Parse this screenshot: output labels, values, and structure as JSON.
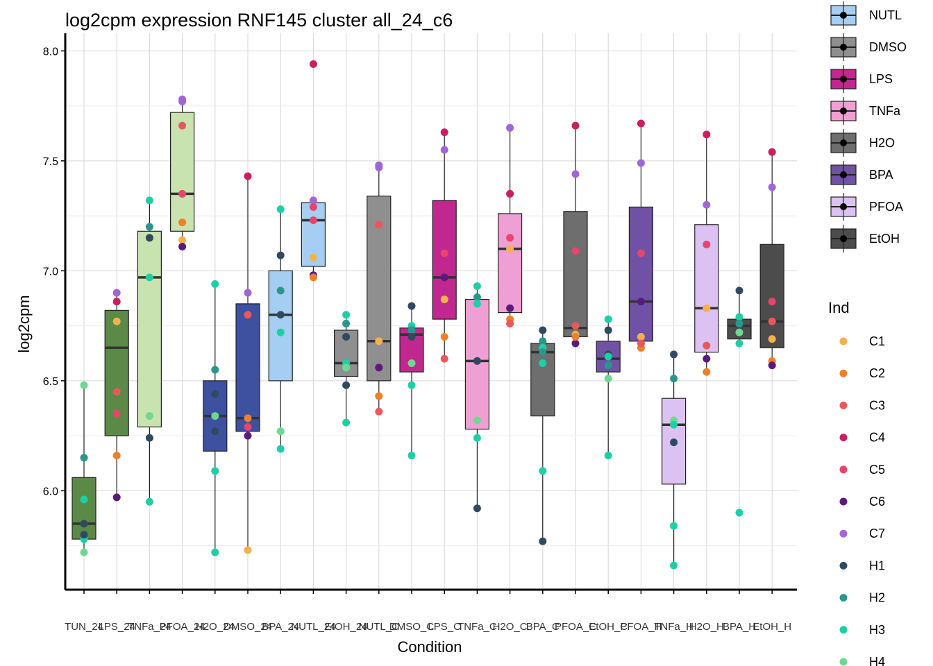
{
  "chart_data": {
    "type": "box",
    "title": "log2cpm expression RNF145 cluster all_24_c6",
    "xlabel": "Condition",
    "ylabel": "log2cpm",
    "ylim": [
      5.55,
      8.08
    ],
    "yticks": [
      "6.0",
      "6.5",
      "7.0",
      "7.5",
      "8.0"
    ],
    "ytick_values": [
      6.0,
      6.5,
      7.0,
      7.5,
      8.0
    ],
    "grid": true,
    "legend_position": "right",
    "categories": [
      "TUN_24",
      "LPS_24",
      "TNFa_24",
      "PFOA_24",
      "H2O_24",
      "DMSO_24",
      "BPA_24",
      "NUTL_24",
      "EtOH_24",
      "NUTL_C",
      "DMSO_C",
      "LPS_C",
      "TNFa_C",
      "H2O_C",
      "BPA_C",
      "PFOA_C",
      "EtOH_C",
      "PFOA_H",
      "TNFa_H",
      "H2O_H",
      "BPA_H",
      "EtOH_H"
    ],
    "treatment_legend_title": "",
    "treatments": [
      {
        "name": "NUTL",
        "color": "#a6cef2"
      },
      {
        "name": "DMSO",
        "color": "#8f8f8f"
      },
      {
        "name": "LPS",
        "color": "#c0288f"
      },
      {
        "name": "TNFa",
        "color": "#f09fd4"
      },
      {
        "name": "H2O",
        "color": "#6e6e6e"
      },
      {
        "name": "BPA",
        "color": "#6f52a5"
      },
      {
        "name": "PFOA",
        "color": "#dcc2f2"
      },
      {
        "name": "EtOH",
        "color": "#4c4c4c"
      }
    ],
    "individuals_legend_title": "Ind",
    "individuals": [
      {
        "name": "C1",
        "color": "#f5b04e"
      },
      {
        "name": "C2",
        "color": "#f07f2a"
      },
      {
        "name": "C3",
        "color": "#e8585c"
      },
      {
        "name": "C4",
        "color": "#cc1f5f"
      },
      {
        "name": "C5",
        "color": "#e8446e"
      },
      {
        "name": "C6",
        "color": "#5c1a7a"
      },
      {
        "name": "C7",
        "color": "#a066d8"
      },
      {
        "name": "H1",
        "color": "#2f4a60"
      },
      {
        "name": "H2",
        "color": "#2a968c"
      },
      {
        "name": "H3",
        "color": "#1ecfa6"
      },
      {
        "name": "H4",
        "color": "#6fd890"
      }
    ],
    "boxes": [
      {
        "fill": "#5b8a47",
        "q1": 5.78,
        "median": 5.85,
        "q3": 6.06,
        "wmin": 5.72,
        "wmax": 6.48
      },
      {
        "fill": "#5b8a47",
        "q1": 6.25,
        "median": 6.65,
        "q3": 6.82,
        "wmin": 5.97,
        "wmax": 6.9
      },
      {
        "fill": "#c8e3b0",
        "q1": 6.29,
        "median": 6.97,
        "q3": 7.18,
        "wmin": 5.95,
        "wmax": 7.32
      },
      {
        "fill": "#c8e3b0",
        "q1": 7.18,
        "median": 7.35,
        "q3": 7.72,
        "wmin": 7.11,
        "wmax": 7.78
      },
      {
        "fill": "#3e50a0",
        "q1": 6.18,
        "median": 6.34,
        "q3": 6.5,
        "wmin": 5.72,
        "wmax": 6.94
      },
      {
        "fill": "#3e50a0",
        "q1": 6.27,
        "median": 6.33,
        "q3": 6.85,
        "wmin": 5.73,
        "wmax": 7.43
      },
      {
        "fill": "#a6cef2",
        "q1": 6.5,
        "median": 6.8,
        "q3": 7.0,
        "wmin": 6.19,
        "wmax": 7.28
      },
      {
        "fill": "#a6cef2",
        "q1": 7.02,
        "median": 7.23,
        "q3": 7.31,
        "wmin": 6.96,
        "wmax": 7.32
      },
      {
        "fill": "#8f8f8f",
        "q1": 6.52,
        "median": 6.58,
        "q3": 6.73,
        "wmin": 6.31,
        "wmax": 6.8
      },
      {
        "fill": "#8f8f8f",
        "q1": 6.5,
        "median": 6.68,
        "q3": 7.34,
        "wmin": 6.36,
        "wmax": 7.48
      },
      {
        "fill": "#c0288f",
        "q1": 6.54,
        "median": 6.71,
        "q3": 6.74,
        "wmin": 6.16,
        "wmax": 6.84
      },
      {
        "fill": "#c0288f",
        "q1": 6.78,
        "median": 6.97,
        "q3": 7.32,
        "wmin": 6.6,
        "wmax": 7.63
      },
      {
        "fill": "#f09fd4",
        "q1": 6.28,
        "median": 6.59,
        "q3": 6.87,
        "wmin": 5.92,
        "wmax": 6.93
      },
      {
        "fill": "#f09fd4",
        "q1": 6.81,
        "median": 7.1,
        "q3": 7.26,
        "wmin": 6.76,
        "wmax": 7.65
      },
      {
        "fill": "#6e6e6e",
        "q1": 6.34,
        "median": 6.63,
        "q3": 6.67,
        "wmin": 5.77,
        "wmax": 6.73
      },
      {
        "fill": "#6e6e6e",
        "q1": 6.7,
        "median": 6.74,
        "q3": 7.27,
        "wmin": 6.67,
        "wmax": 7.66
      },
      {
        "fill": "#6f52a5",
        "q1": 6.54,
        "median": 6.6,
        "q3": 6.68,
        "wmin": 6.16,
        "wmax": 6.78
      },
      {
        "fill": "#6f52a5",
        "q1": 6.68,
        "median": 6.86,
        "q3": 7.29,
        "wmin": 6.65,
        "wmax": 7.67
      },
      {
        "fill": "#dcc2f2",
        "q1": 6.03,
        "median": 6.3,
        "q3": 6.42,
        "wmin": 5.66,
        "wmax": 6.62
      },
      {
        "fill": "#dcc2f2",
        "q1": 6.63,
        "median": 6.83,
        "q3": 7.21,
        "wmin": 6.54,
        "wmax": 7.62
      },
      {
        "fill": "#4c4c4c",
        "q1": 6.69,
        "median": 6.75,
        "q3": 6.78,
        "wmin": 6.67,
        "wmax": 6.91
      },
      {
        "fill": "#4c4c4c",
        "q1": 6.65,
        "median": 6.77,
        "q3": 7.12,
        "wmin": 6.57,
        "wmax": 7.54
      }
    ],
    "points": [
      [
        [
          "H4",
          6.48
        ],
        [
          "H2",
          6.15
        ],
        [
          "H3",
          5.96
        ],
        [
          "H1",
          5.85
        ],
        [
          "H3",
          5.78
        ],
        [
          "H4",
          5.72
        ],
        [
          "H1",
          5.8
        ]
      ],
      [
        [
          "C7",
          6.9
        ],
        [
          "C4",
          6.86
        ],
        [
          "C1",
          6.77
        ],
        [
          "C3",
          6.45
        ],
        [
          "C5",
          6.35
        ],
        [
          "C2",
          6.16
        ],
        [
          "C6",
          5.97
        ]
      ],
      [
        [
          "H3",
          7.32
        ],
        [
          "H2",
          7.2
        ],
        [
          "H1",
          7.15
        ],
        [
          "H3",
          6.97
        ],
        [
          "H4",
          6.34
        ],
        [
          "H1",
          6.24
        ],
        [
          "H3",
          5.95
        ]
      ],
      [
        [
          "C7",
          7.78
        ],
        [
          "C7",
          7.77
        ],
        [
          "C3",
          7.66
        ],
        [
          "C5",
          7.35
        ],
        [
          "C2",
          7.22
        ],
        [
          "C1",
          7.14
        ],
        [
          "C6",
          7.11
        ]
      ],
      [
        [
          "H3",
          6.94
        ],
        [
          "H2",
          6.55
        ],
        [
          "H1",
          6.44
        ],
        [
          "H4",
          6.34
        ],
        [
          "H1",
          6.27
        ],
        [
          "H3",
          6.09
        ],
        [
          "H3",
          5.72
        ]
      ],
      [
        [
          "C4",
          7.43
        ],
        [
          "C7",
          6.9
        ],
        [
          "C3",
          6.8
        ],
        [
          "C2",
          6.33
        ],
        [
          "C5",
          6.29
        ],
        [
          "C6",
          6.25
        ],
        [
          "C1",
          5.73
        ]
      ],
      [
        [
          "H3",
          7.28
        ],
        [
          "H1",
          7.07
        ],
        [
          "H2",
          6.91
        ],
        [
          "H1",
          6.8
        ],
        [
          "H3",
          6.72
        ],
        [
          "H4",
          6.27
        ],
        [
          "H3",
          6.19
        ]
      ],
      [
        [
          "C4",
          7.94
        ],
        [
          "C7",
          7.32
        ],
        [
          "C5",
          7.29
        ],
        [
          "C5",
          7.23
        ],
        [
          "C1",
          7.06
        ],
        [
          "C6",
          6.98
        ],
        [
          "C2",
          6.97
        ]
      ],
      [
        [
          "H3",
          6.8
        ],
        [
          "H2",
          6.76
        ],
        [
          "H1",
          6.7
        ],
        [
          "H3",
          6.58
        ],
        [
          "H4",
          6.56
        ],
        [
          "H1",
          6.48
        ],
        [
          "H3",
          6.31
        ]
      ],
      [
        [
          "C7",
          7.48
        ],
        [
          "C7",
          7.47
        ],
        [
          "C3",
          7.21
        ],
        [
          "C1",
          6.68
        ],
        [
          "C6",
          6.56
        ],
        [
          "C2",
          6.43
        ],
        [
          "C3",
          6.36
        ]
      ],
      [
        [
          "H1",
          6.84
        ],
        [
          "H3",
          6.75
        ],
        [
          "H2",
          6.73
        ],
        [
          "H1",
          6.7
        ],
        [
          "H4",
          6.58
        ],
        [
          "H3",
          6.48
        ],
        [
          "H3",
          6.16
        ]
      ],
      [
        [
          "C4",
          7.63
        ],
        [
          "C7",
          7.55
        ],
        [
          "C5",
          7.08
        ],
        [
          "C6",
          6.97
        ],
        [
          "C1",
          6.87
        ],
        [
          "C2",
          6.7
        ],
        [
          "C3",
          6.6
        ]
      ],
      [
        [
          "H3",
          6.93
        ],
        [
          "H2",
          6.88
        ],
        [
          "H3",
          6.85
        ],
        [
          "H1",
          6.59
        ],
        [
          "H4",
          6.32
        ],
        [
          "H3",
          6.24
        ],
        [
          "H1",
          5.92
        ]
      ],
      [
        [
          "C7",
          7.65
        ],
        [
          "C4",
          7.35
        ],
        [
          "C5",
          7.15
        ],
        [
          "C1",
          7.1
        ],
        [
          "C6",
          6.83
        ],
        [
          "C2",
          6.78
        ],
        [
          "C3",
          6.76
        ]
      ],
      [
        [
          "H1",
          6.73
        ],
        [
          "H2",
          6.68
        ],
        [
          "H3",
          6.65
        ],
        [
          "H2",
          6.63
        ],
        [
          "H3",
          6.58
        ],
        [
          "H3",
          6.09
        ],
        [
          "H1",
          5.77
        ]
      ],
      [
        [
          "C4",
          7.66
        ],
        [
          "C7",
          7.44
        ],
        [
          "C5",
          7.09
        ],
        [
          "C3",
          6.75
        ],
        [
          "C1",
          6.71
        ],
        [
          "C6",
          6.67
        ],
        [
          "C2",
          6.7
        ]
      ],
      [
        [
          "H3",
          6.78
        ],
        [
          "H1",
          6.73
        ],
        [
          "H1",
          6.62
        ],
        [
          "H3",
          6.61
        ],
        [
          "H2",
          6.57
        ],
        [
          "H4",
          6.51
        ],
        [
          "H3",
          6.16
        ]
      ],
      [
        [
          "C4",
          7.67
        ],
        [
          "C7",
          7.49
        ],
        [
          "C5",
          7.08
        ],
        [
          "C6",
          6.86
        ],
        [
          "C1",
          6.7
        ],
        [
          "C2",
          6.65
        ],
        [
          "C3",
          6.67
        ]
      ],
      [
        [
          "H1",
          6.62
        ],
        [
          "H2",
          6.51
        ],
        [
          "H4",
          6.32
        ],
        [
          "H3",
          6.3
        ],
        [
          "H1",
          6.22
        ],
        [
          "H3",
          5.84
        ],
        [
          "H3",
          5.66
        ]
      ],
      [
        [
          "C4",
          7.62
        ],
        [
          "C7",
          7.3
        ],
        [
          "C5",
          7.12
        ],
        [
          "C1",
          6.83
        ],
        [
          "C3",
          6.66
        ],
        [
          "C6",
          6.6
        ],
        [
          "C2",
          6.54
        ]
      ],
      [
        [
          "H1",
          6.91
        ],
        [
          "H3",
          6.79
        ],
        [
          "H1",
          6.75
        ],
        [
          "H4",
          6.72
        ],
        [
          "H3",
          6.67
        ],
        [
          "H3",
          5.9
        ],
        [
          "H2",
          6.76
        ]
      ],
      [
        [
          "C4",
          7.54
        ],
        [
          "C7",
          7.38
        ],
        [
          "C5",
          6.86
        ],
        [
          "C3",
          6.77
        ],
        [
          "C1",
          6.69
        ],
        [
          "C2",
          6.59
        ],
        [
          "C6",
          6.57
        ]
      ]
    ]
  }
}
